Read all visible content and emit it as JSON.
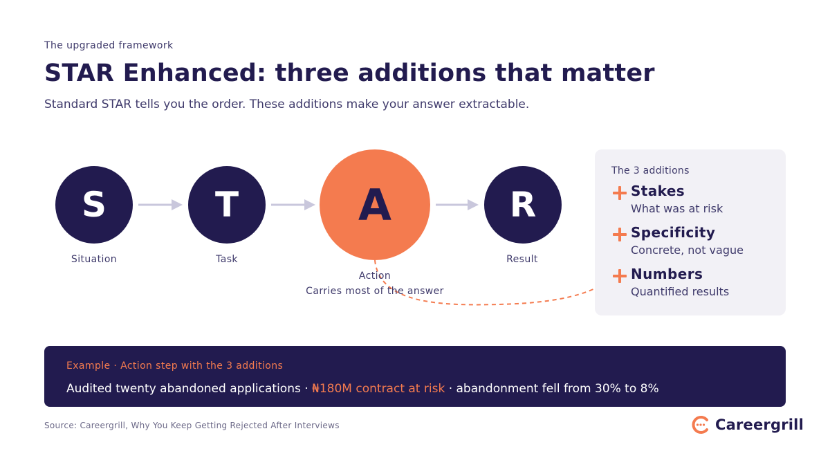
{
  "header": {
    "eyebrow": "The upgraded framework",
    "title": "STAR Enhanced: three additions that matter",
    "subtitle": "Standard STAR tells you the order. These additions make your answer extractable."
  },
  "steps": [
    {
      "letter": "S",
      "label": "Situation"
    },
    {
      "letter": "T",
      "label": "Task"
    },
    {
      "letter": "A",
      "label": "Action",
      "note": "Carries most of the answer"
    },
    {
      "letter": "R",
      "label": "Result"
    }
  ],
  "additions_panel": {
    "heading": "The 3 additions",
    "items": [
      {
        "title": "Stakes",
        "description": "What was at risk"
      },
      {
        "title": "Specificity",
        "description": "Concrete, not vague"
      },
      {
        "title": "Numbers",
        "description": "Quantified results"
      }
    ]
  },
  "example": {
    "label": "Example · Action step with the 3 additions",
    "text_before": "Audited twenty abandoned applications · ",
    "text_highlight": "₦180M contract at risk",
    "text_after": " · abandonment fell from 30% to 8%"
  },
  "footer": {
    "source": "Source: Careergrill, Why You Keep Getting Rejected After Interviews",
    "brand": "Careergrill"
  },
  "colors": {
    "navy": "#221b4f",
    "accent": "#f47b4f",
    "arrow": "#c9c7dc",
    "panel": "#f2f1f6"
  }
}
